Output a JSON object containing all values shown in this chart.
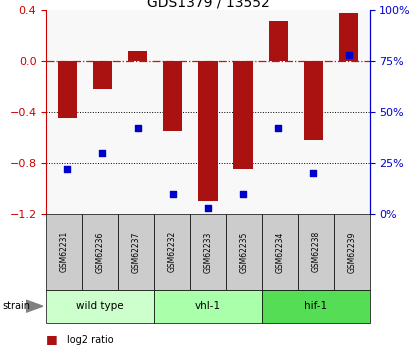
{
  "title": "GDS1379 / 13552",
  "samples": [
    "GSM62231",
    "GSM62236",
    "GSM62237",
    "GSM62232",
    "GSM62233",
    "GSM62235",
    "GSM62234",
    "GSM62238",
    "GSM62239"
  ],
  "log2_ratio": [
    -0.45,
    -0.22,
    0.08,
    -0.55,
    -1.1,
    -0.85,
    0.32,
    -0.62,
    0.38
  ],
  "percentile_rank": [
    22,
    30,
    42,
    10,
    3,
    10,
    42,
    20,
    78
  ],
  "groups": [
    {
      "label": "wild type",
      "start": 0,
      "end": 3,
      "color": "#ccffcc"
    },
    {
      "label": "vhl-1",
      "start": 3,
      "end": 6,
      "color": "#aaffaa"
    },
    {
      "label": "hif-1",
      "start": 6,
      "end": 9,
      "color": "#55dd55"
    }
  ],
  "ylim_left": [
    -1.2,
    0.4
  ],
  "ylim_right": [
    0,
    100
  ],
  "bar_color": "#aa1111",
  "dot_color": "#0000cc",
  "hline_color": "#cc1111",
  "grid_color": "#000000",
  "bg_color": "#ffffff",
  "tick_color_left": "#cc0000",
  "tick_color_right": "#0000cc",
  "plot_bg": "#f8f8f8"
}
